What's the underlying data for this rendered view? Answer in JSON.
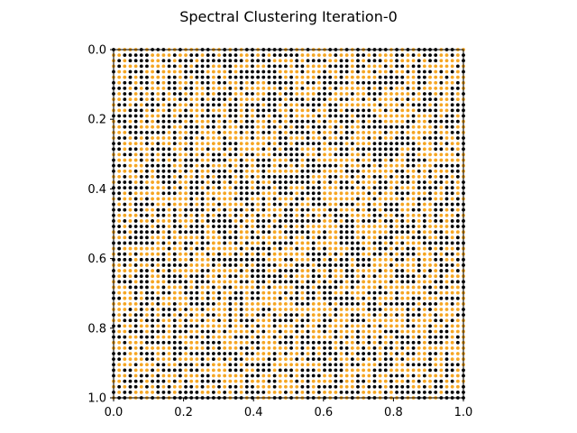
{
  "chart_data": {
    "type": "scatter",
    "title": "Spectral Clustering Iteration-0",
    "xlabel": "",
    "ylabel": "",
    "xlim": [
      0.0,
      1.0
    ],
    "ylim": [
      1.0,
      0.0
    ],
    "y_inverted": true,
    "grid": false,
    "xticks": [
      "0.0",
      "0.2",
      "0.4",
      "0.6",
      "0.8",
      "1.0"
    ],
    "xtick_values": [
      0.0,
      0.2,
      0.4,
      0.6,
      0.8,
      1.0
    ],
    "yticks": [
      "0.0",
      "0.2",
      "0.4",
      "0.6",
      "0.8",
      "1.0"
    ],
    "ytick_values": [
      0.0,
      0.2,
      0.4,
      0.6,
      0.8,
      1.0
    ],
    "grid_points_per_side": 64,
    "point_distribution": "regular 64x64 lattice over [0,1]x[0,1]; each point randomly assigned to one of two clusters",
    "series": [
      {
        "name": "",
        "color": "#000000",
        "share": 0.5
      },
      {
        "name": "",
        "color": "#f5a623",
        "share": 0.5
      }
    ],
    "seed": 7
  }
}
